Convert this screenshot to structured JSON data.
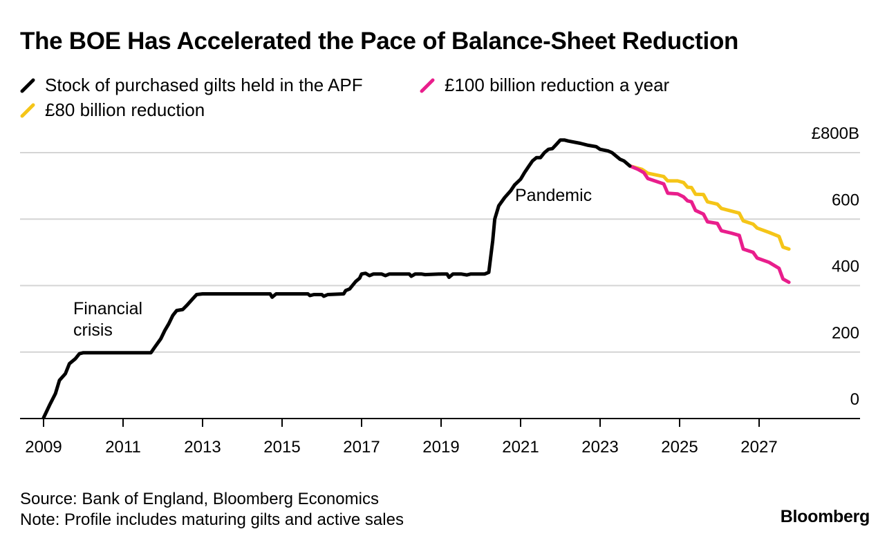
{
  "chart_data": {
    "type": "line",
    "title": "The BOE Has Accelerated the Pace of Balance-Sheet Reduction",
    "ylabel": "",
    "xlabel": "",
    "ylim": [
      0,
      800
    ],
    "xlim": [
      2009,
      2029.3
    ],
    "y_ticks": [
      {
        "value": 0,
        "label": "0"
      },
      {
        "value": 200,
        "label": "200"
      },
      {
        "value": 400,
        "label": "400"
      },
      {
        "value": 600,
        "label": "600"
      },
      {
        "value": 800,
        "label": "£800B"
      }
    ],
    "x_ticks": [
      {
        "value": 2009,
        "label": "2009"
      },
      {
        "value": 2011,
        "label": "2011"
      },
      {
        "value": 2013,
        "label": "2013"
      },
      {
        "value": 2015,
        "label": "2015"
      },
      {
        "value": 2017,
        "label": "2017"
      },
      {
        "value": 2019,
        "label": "2019"
      },
      {
        "value": 2021,
        "label": "2021"
      },
      {
        "value": 2023,
        "label": "2023"
      },
      {
        "value": 2025,
        "label": "2025"
      },
      {
        "value": 2027,
        "label": "2027"
      }
    ],
    "series": [
      {
        "name": "Stock of purchased gilts held in the APF",
        "color": "#000000",
        "points": [
          [
            2009.0,
            2
          ],
          [
            2009.15,
            40
          ],
          [
            2009.3,
            75
          ],
          [
            2009.4,
            115
          ],
          [
            2009.55,
            135
          ],
          [
            2009.65,
            165
          ],
          [
            2009.8,
            180
          ],
          [
            2009.9,
            195
          ],
          [
            2010.0,
            198
          ],
          [
            2010.5,
            198
          ],
          [
            2011.0,
            198
          ],
          [
            2011.5,
            198
          ],
          [
            2011.7,
            198
          ],
          [
            2011.8,
            215
          ],
          [
            2011.95,
            240
          ],
          [
            2012.05,
            265
          ],
          [
            2012.15,
            285
          ],
          [
            2012.25,
            310
          ],
          [
            2012.35,
            325
          ],
          [
            2012.5,
            328
          ],
          [
            2012.6,
            340
          ],
          [
            2012.75,
            360
          ],
          [
            2012.85,
            373
          ],
          [
            2013.0,
            375
          ],
          [
            2014.0,
            375
          ],
          [
            2014.5,
            375
          ],
          [
            2014.7,
            375
          ],
          [
            2014.75,
            365
          ],
          [
            2014.85,
            375
          ],
          [
            2015.5,
            375
          ],
          [
            2015.65,
            375
          ],
          [
            2015.7,
            370
          ],
          [
            2015.8,
            373
          ],
          [
            2016.0,
            373
          ],
          [
            2016.05,
            368
          ],
          [
            2016.15,
            373
          ],
          [
            2016.55,
            375
          ],
          [
            2016.6,
            385
          ],
          [
            2016.7,
            390
          ],
          [
            2016.85,
            412
          ],
          [
            2016.95,
            422
          ],
          [
            2017.0,
            435
          ],
          [
            2017.1,
            437
          ],
          [
            2017.2,
            430
          ],
          [
            2017.3,
            435
          ],
          [
            2017.5,
            435
          ],
          [
            2017.6,
            430
          ],
          [
            2017.7,
            435
          ],
          [
            2018.0,
            435
          ],
          [
            2018.2,
            435
          ],
          [
            2018.25,
            428
          ],
          [
            2018.35,
            435
          ],
          [
            2018.5,
            435
          ],
          [
            2018.6,
            433
          ],
          [
            2019.0,
            435
          ],
          [
            2019.15,
            435
          ],
          [
            2019.2,
            425
          ],
          [
            2019.3,
            435
          ],
          [
            2019.5,
            435
          ],
          [
            2019.65,
            432
          ],
          [
            2019.75,
            435
          ],
          [
            2020.0,
            435
          ],
          [
            2020.1,
            435
          ],
          [
            2020.2,
            440
          ],
          [
            2020.3,
            535
          ],
          [
            2020.35,
            600
          ],
          [
            2020.45,
            640
          ],
          [
            2020.6,
            665
          ],
          [
            2020.75,
            685
          ],
          [
            2020.85,
            703
          ],
          [
            2021.0,
            720
          ],
          [
            2021.1,
            740
          ],
          [
            2021.2,
            758
          ],
          [
            2021.3,
            775
          ],
          [
            2021.4,
            785
          ],
          [
            2021.5,
            785
          ],
          [
            2021.6,
            800
          ],
          [
            2021.7,
            810
          ],
          [
            2021.8,
            812
          ],
          [
            2021.9,
            825
          ],
          [
            2022.0,
            838
          ],
          [
            2022.1,
            838
          ],
          [
            2022.2,
            835
          ],
          [
            2022.5,
            828
          ],
          [
            2022.7,
            822
          ],
          [
            2022.9,
            818
          ],
          [
            2023.0,
            810
          ],
          [
            2023.2,
            805
          ],
          [
            2023.3,
            800
          ],
          [
            2023.4,
            790
          ],
          [
            2023.5,
            780
          ],
          [
            2023.6,
            775
          ],
          [
            2023.75,
            760
          ]
        ]
      },
      {
        "name": "£100 billion reduction a year",
        "color": "#e91e8c",
        "points": [
          [
            2023.75,
            760
          ],
          [
            2023.95,
            750
          ],
          [
            2024.1,
            740
          ],
          [
            2024.2,
            722
          ],
          [
            2024.6,
            706
          ],
          [
            2024.7,
            678
          ],
          [
            2024.95,
            676
          ],
          [
            2025.1,
            667
          ],
          [
            2025.2,
            655
          ],
          [
            2025.3,
            652
          ],
          [
            2025.4,
            626
          ],
          [
            2025.6,
            615
          ],
          [
            2025.7,
            592
          ],
          [
            2025.95,
            587
          ],
          [
            2026.05,
            565
          ],
          [
            2026.3,
            558
          ],
          [
            2026.5,
            551
          ],
          [
            2026.6,
            510
          ],
          [
            2026.85,
            500
          ],
          [
            2026.95,
            483
          ],
          [
            2027.25,
            470
          ],
          [
            2027.5,
            452
          ],
          [
            2027.6,
            420
          ],
          [
            2027.75,
            410
          ]
        ]
      },
      {
        "name": "£80 billion reduction",
        "color": "#f5c518",
        "points": [
          [
            2023.75,
            760
          ],
          [
            2024.05,
            750
          ],
          [
            2024.2,
            738
          ],
          [
            2024.6,
            728
          ],
          [
            2024.7,
            715
          ],
          [
            2024.95,
            715
          ],
          [
            2025.1,
            710
          ],
          [
            2025.2,
            696
          ],
          [
            2025.3,
            695
          ],
          [
            2025.4,
            675
          ],
          [
            2025.6,
            674
          ],
          [
            2025.7,
            652
          ],
          [
            2025.95,
            645
          ],
          [
            2026.05,
            632
          ],
          [
            2026.5,
            618
          ],
          [
            2026.6,
            595
          ],
          [
            2026.85,
            585
          ],
          [
            2026.95,
            573
          ],
          [
            2027.25,
            560
          ],
          [
            2027.5,
            548
          ],
          [
            2027.6,
            516
          ],
          [
            2027.75,
            510
          ]
        ]
      }
    ],
    "annotations": [
      {
        "lines": [
          "Financial",
          "crisis"
        ]
      },
      {
        "lines": [
          "Pandemic"
        ]
      }
    ]
  },
  "footer": {
    "source": "Source: Bank of England, Bloomberg Economics",
    "note": "Note: Profile includes maturing gilts and active sales",
    "brand": "Bloomberg"
  }
}
